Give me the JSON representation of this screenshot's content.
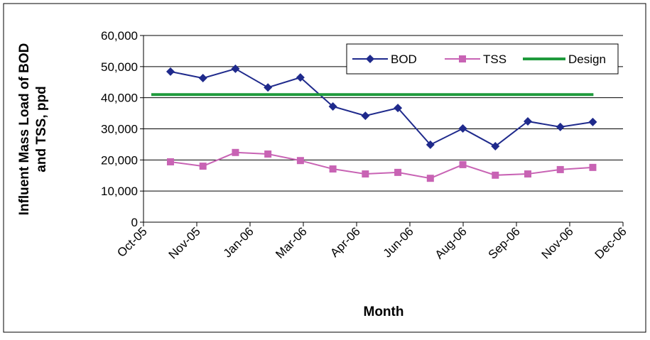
{
  "chart_data": {
    "type": "line",
    "x_label": "Month",
    "y_label": [
      "Influent Mass Load of BOD",
      "and TSS, ppd"
    ],
    "xlim": [
      0,
      14.76
    ],
    "xticks": [
      {
        "value": 0,
        "label": "Oct-05"
      },
      {
        "value": 1.64,
        "label": "Nov-05"
      },
      {
        "value": 3.28,
        "label": "Jan-06"
      },
      {
        "value": 4.92,
        "label": "Mar-06"
      },
      {
        "value": 6.56,
        "label": "Apr-06"
      },
      {
        "value": 8.2,
        "label": "Jun-06"
      },
      {
        "value": 9.84,
        "label": "Aug-06"
      },
      {
        "value": 11.48,
        "label": "Sep-06"
      },
      {
        "value": 13.12,
        "label": "Nov-06"
      },
      {
        "value": 14.76,
        "label": "Dec-06"
      }
    ],
    "ylim": [
      0,
      60000
    ],
    "yticks": [
      0,
      {
        "value": 10000,
        "label": "10,000"
      },
      {
        "value": 20000,
        "label": "20,000"
      },
      {
        "value": 30000,
        "label": "30,000"
      },
      {
        "value": 40000,
        "label": "40,000"
      },
      {
        "value": 50000,
        "label": "50,000"
      },
      {
        "value": 60000,
        "label": "60,000"
      }
    ],
    "grid": true,
    "legend": "top-right",
    "series": [
      {
        "name": "BOD",
        "color": "#1f2a8c",
        "marker": "diamond",
        "x": [
          0.83,
          1.83,
          2.83,
          3.83,
          4.83,
          5.83,
          6.83,
          7.83,
          8.83,
          9.83,
          10.83,
          11.83,
          12.83,
          13.83
        ],
        "values": [
          48400,
          46300,
          49300,
          43300,
          46500,
          37200,
          34200,
          36700,
          24900,
          30100,
          24400,
          32400,
          30600,
          32200
        ]
      },
      {
        "name": "TSS",
        "color": "#c863b4",
        "marker": "square",
        "x": [
          0.83,
          1.83,
          2.83,
          3.83,
          4.83,
          5.83,
          6.83,
          7.83,
          8.83,
          9.83,
          10.83,
          11.83,
          12.83,
          13.83
        ],
        "values": [
          19400,
          18000,
          22400,
          21900,
          19800,
          17100,
          15500,
          16000,
          14100,
          18500,
          15100,
          15500,
          16900,
          17600
        ]
      },
      {
        "name": "Design",
        "color": "#1f9a3c",
        "marker": "none",
        "x": [
          0.24,
          13.85
        ],
        "values": [
          41000,
          41000
        ]
      }
    ]
  }
}
